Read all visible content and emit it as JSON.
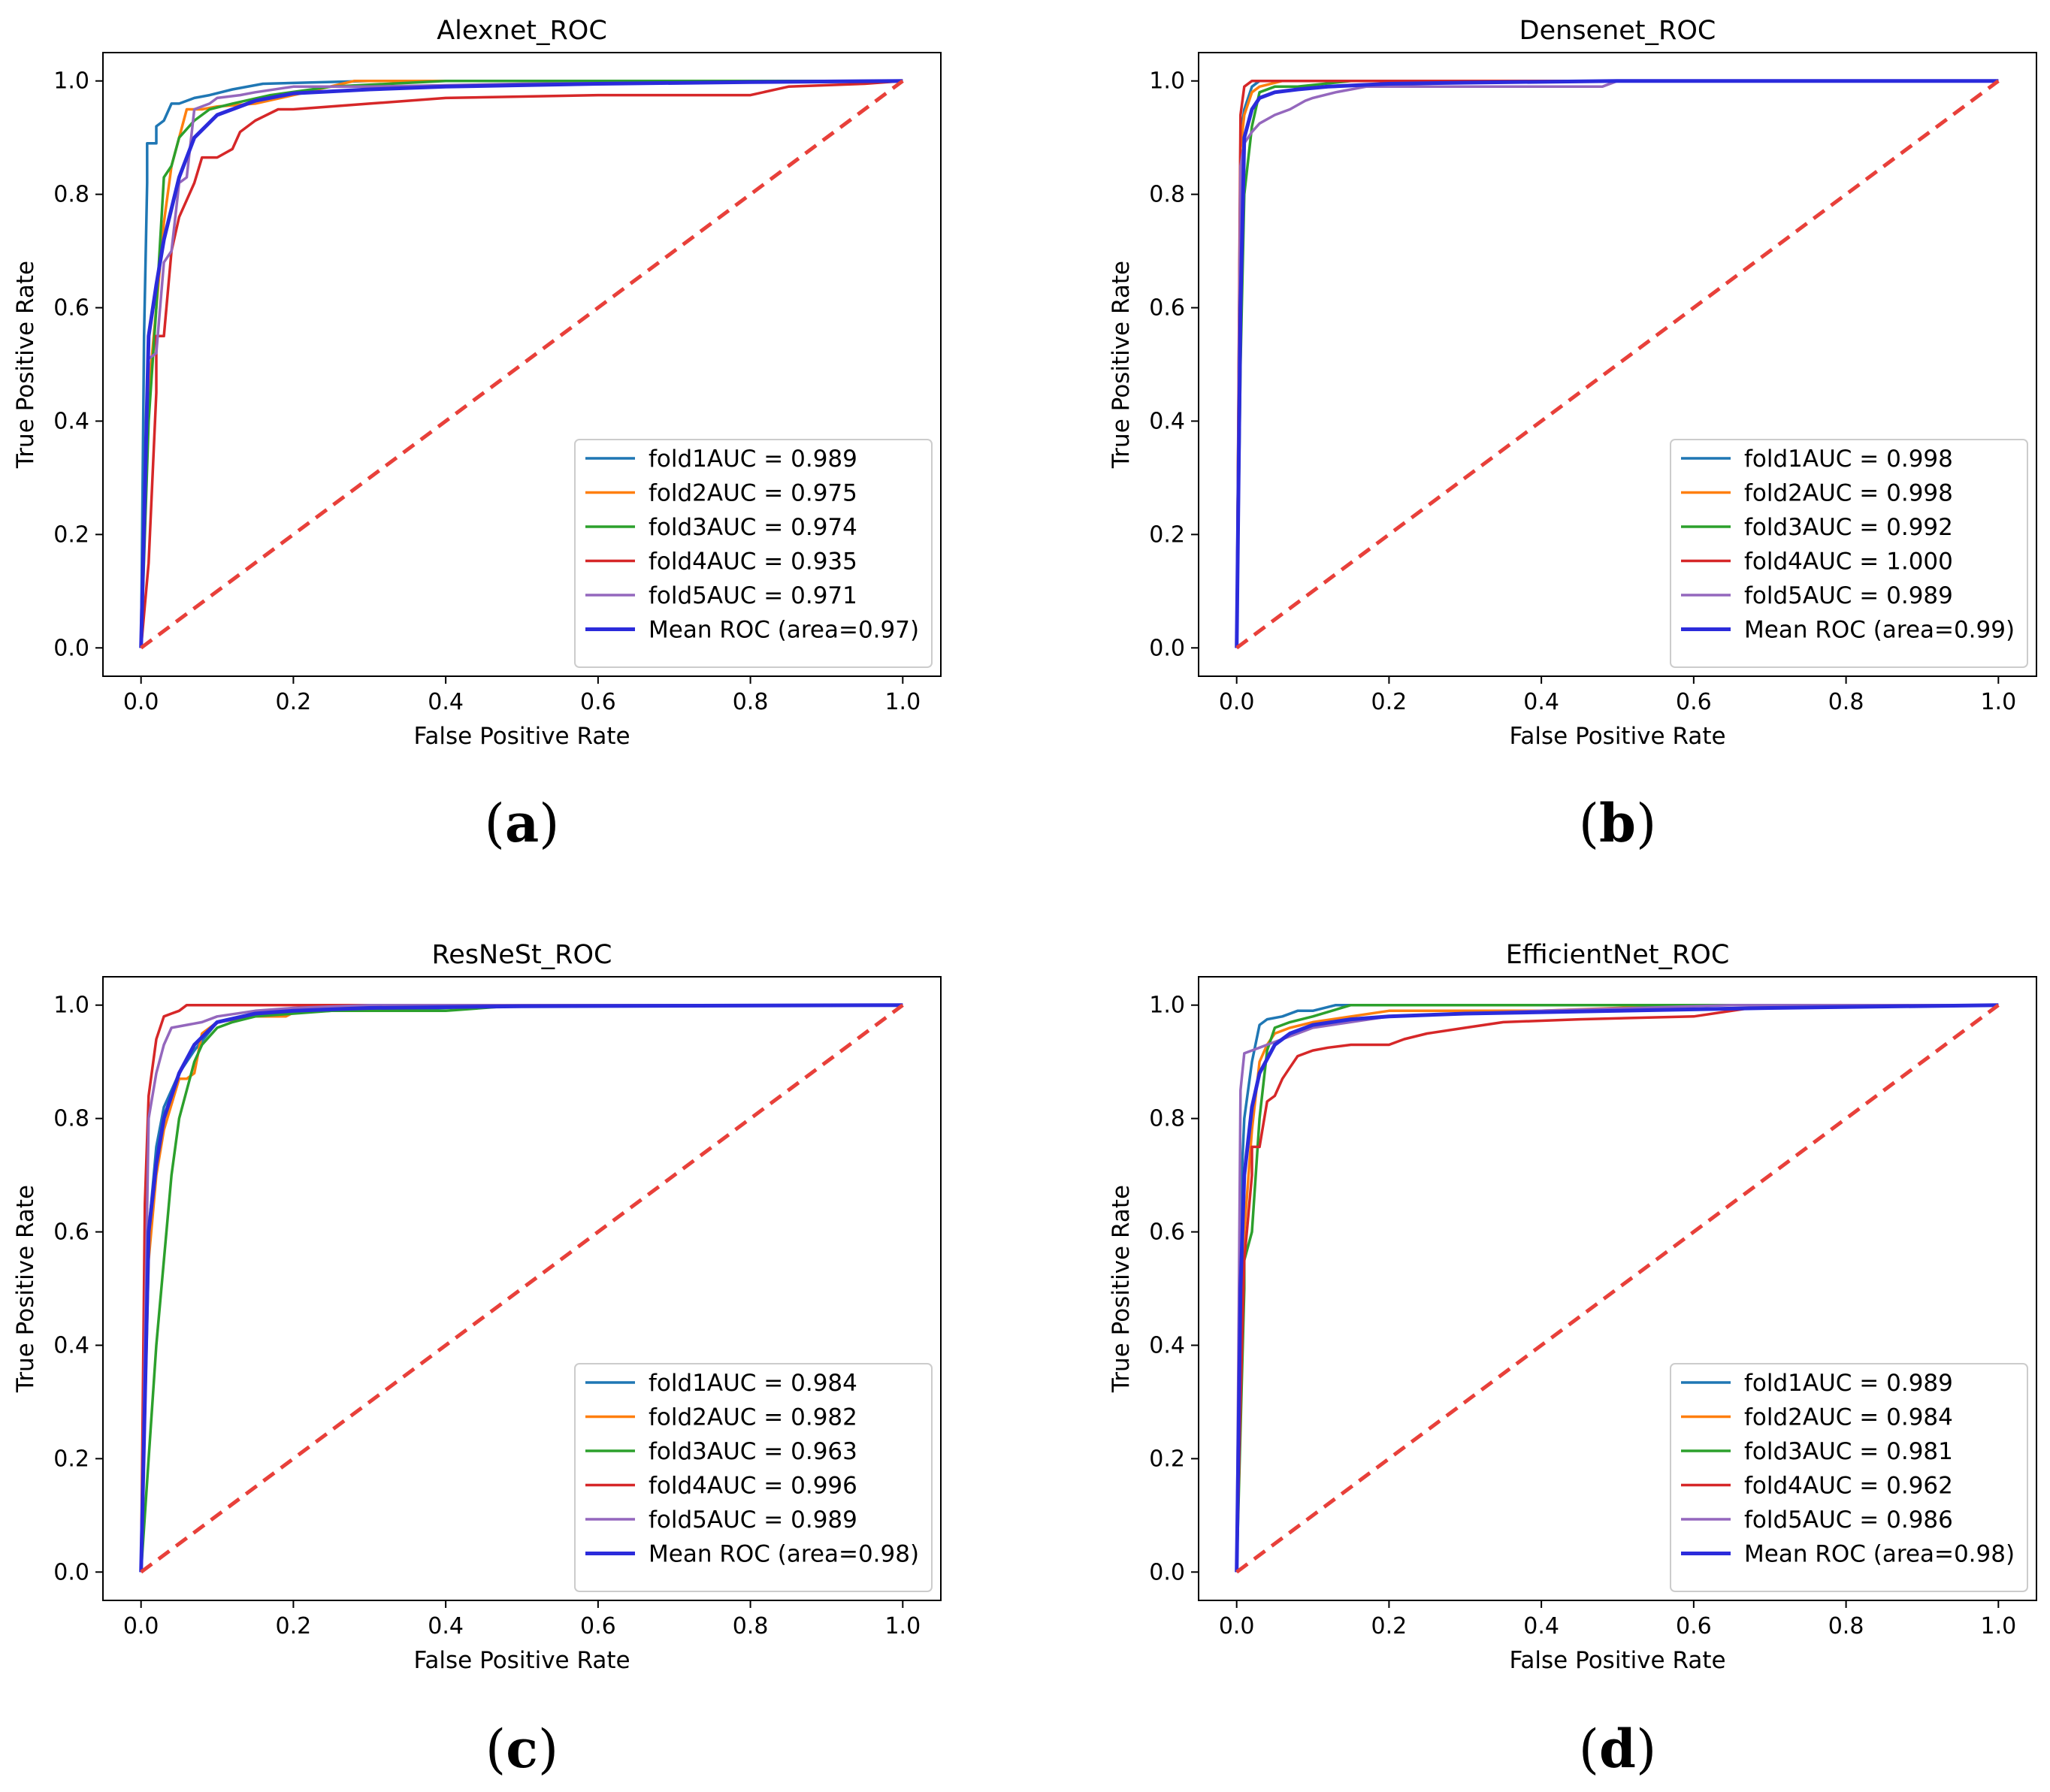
{
  "colors": {
    "fold1": "#1f77b4",
    "fold2": "#ff7f0e",
    "fold3": "#2ca02c",
    "fold4": "#d62728",
    "fold5": "#9467bd",
    "mean": "#2b2bdb",
    "chance": "#e8403a"
  },
  "chart_data": [
    {
      "type": "line",
      "panel_label": "a",
      "title": "Alexnet_ROC",
      "xlabel": "False Positive Rate",
      "ylabel": "True Positive Rate",
      "xlim": [
        0,
        1
      ],
      "ylim": [
        0,
        1
      ],
      "xticks": [
        "0.0",
        "0.2",
        "0.4",
        "0.6",
        "0.8",
        "1.0"
      ],
      "yticks": [
        "0.0",
        "0.2",
        "0.4",
        "0.6",
        "0.8",
        "1.0"
      ],
      "legend_position": "lower-right",
      "chance_line": {
        "x": [
          0,
          1
        ],
        "y": [
          0,
          1
        ],
        "style": "dashed"
      },
      "series": [
        {
          "name": "fold1AUC = 0.989",
          "color": "#1f77b4",
          "x": [
            0,
            0.004,
            0.008,
            0.008,
            0.02,
            0.02,
            0.03,
            0.04,
            0.05,
            0.07,
            0.09,
            0.12,
            0.16,
            0.3,
            0.5,
            1.0
          ],
          "y": [
            0,
            0.55,
            0.82,
            0.89,
            0.89,
            0.92,
            0.93,
            0.96,
            0.96,
            0.97,
            0.975,
            0.985,
            0.995,
            1.0,
            1.0,
            1.0
          ]
        },
        {
          "name": "fold2AUC = 0.975",
          "color": "#ff7f0e",
          "x": [
            0,
            0.01,
            0.02,
            0.03,
            0.04,
            0.05,
            0.06,
            0.08,
            0.1,
            0.15,
            0.2,
            0.28,
            0.4,
            1.0
          ],
          "y": [
            0,
            0.45,
            0.6,
            0.75,
            0.85,
            0.9,
            0.95,
            0.95,
            0.955,
            0.96,
            0.975,
            1.0,
            1.0,
            1.0
          ]
        },
        {
          "name": "fold3AUC = 0.974",
          "color": "#2ca02c",
          "x": [
            0,
            0.01,
            0.02,
            0.03,
            0.04,
            0.05,
            0.07,
            0.09,
            0.12,
            0.17,
            0.25,
            0.4,
            1.0
          ],
          "y": [
            0,
            0.4,
            0.6,
            0.83,
            0.85,
            0.9,
            0.93,
            0.95,
            0.96,
            0.975,
            0.99,
            1.0,
            1.0
          ]
        },
        {
          "name": "fold4AUC = 0.935",
          "color": "#d62728",
          "x": [
            0,
            0.01,
            0.02,
            0.02,
            0.03,
            0.04,
            0.05,
            0.06,
            0.07,
            0.08,
            0.1,
            0.12,
            0.13,
            0.15,
            0.18,
            0.2,
            0.3,
            0.4,
            0.6,
            0.8,
            0.85,
            0.95,
            1.0
          ],
          "y": [
            0,
            0.15,
            0.45,
            0.55,
            0.55,
            0.7,
            0.76,
            0.79,
            0.82,
            0.865,
            0.865,
            0.88,
            0.91,
            0.93,
            0.95,
            0.95,
            0.96,
            0.97,
            0.975,
            0.975,
            0.99,
            0.995,
            1.0
          ]
        },
        {
          "name": "fold5AUC = 0.971",
          "color": "#9467bd",
          "x": [
            0,
            0.01,
            0.02,
            0.03,
            0.04,
            0.05,
            0.06,
            0.07,
            0.09,
            0.1,
            0.13,
            0.15,
            0.2,
            0.3,
            0.5,
            1.0
          ],
          "y": [
            0,
            0.51,
            0.52,
            0.68,
            0.7,
            0.82,
            0.83,
            0.95,
            0.96,
            0.97,
            0.975,
            0.98,
            0.99,
            0.99,
            0.995,
            1.0
          ]
        },
        {
          "name": "Mean ROC (area=0.97)",
          "color": "#2b2bdb",
          "bold": true,
          "x": [
            0,
            0.01,
            0.02,
            0.03,
            0.05,
            0.07,
            0.1,
            0.15,
            0.2,
            0.3,
            0.4,
            0.6,
            0.8,
            1.0
          ],
          "y": [
            0,
            0.55,
            0.64,
            0.72,
            0.83,
            0.9,
            0.94,
            0.965,
            0.978,
            0.985,
            0.99,
            0.995,
            0.998,
            1.0
          ]
        }
      ]
    },
    {
      "type": "line",
      "panel_label": "b",
      "title": "Densenet_ROC",
      "xlabel": "False Positive Rate",
      "ylabel": "True Positive Rate",
      "xlim": [
        0,
        1
      ],
      "ylim": [
        0,
        1
      ],
      "xticks": [
        "0.0",
        "0.2",
        "0.4",
        "0.6",
        "0.8",
        "1.0"
      ],
      "yticks": [
        "0.0",
        "0.2",
        "0.4",
        "0.6",
        "0.8",
        "1.0"
      ],
      "legend_position": "lower-right",
      "chance_line": {
        "x": [
          0,
          1
        ],
        "y": [
          0,
          1
        ],
        "style": "dashed"
      },
      "series": [
        {
          "name": "fold1AUC = 0.998",
          "color": "#1f77b4",
          "x": [
            0,
            0.005,
            0.01,
            0.02,
            0.03,
            0.05,
            0.1,
            1.0
          ],
          "y": [
            0,
            0.9,
            0.95,
            0.99,
            1.0,
            1.0,
            1.0,
            1.0
          ]
        },
        {
          "name": "fold2AUC = 0.998",
          "color": "#ff7f0e",
          "x": [
            0,
            0.005,
            0.01,
            0.02,
            0.03,
            0.06,
            0.1,
            1.0
          ],
          "y": [
            0,
            0.88,
            0.94,
            0.98,
            0.99,
            1.0,
            1.0,
            1.0
          ]
        },
        {
          "name": "fold3AUC = 0.992",
          "color": "#2ca02c",
          "x": [
            0,
            0.005,
            0.01,
            0.02,
            0.03,
            0.05,
            0.08,
            0.15,
            1.0
          ],
          "y": [
            0,
            0.5,
            0.8,
            0.92,
            0.98,
            0.99,
            0.99,
            1.0,
            1.0
          ]
        },
        {
          "name": "fold4AUC = 1.000",
          "color": "#d62728",
          "x": [
            0,
            0.005,
            0.01,
            0.02,
            1.0
          ],
          "y": [
            0,
            0.94,
            0.99,
            1.0,
            1.0
          ]
        },
        {
          "name": "fold5AUC = 0.989",
          "color": "#9467bd",
          "x": [
            0,
            0.005,
            0.01,
            0.02,
            0.03,
            0.05,
            0.07,
            0.09,
            0.1,
            0.13,
            0.17,
            0.3,
            0.48,
            0.5,
            1.0
          ],
          "y": [
            0,
            0.85,
            0.89,
            0.91,
            0.925,
            0.94,
            0.95,
            0.965,
            0.97,
            0.98,
            0.99,
            0.99,
            0.99,
            1.0,
            1.0
          ]
        },
        {
          "name": "Mean ROC (area=0.99)",
          "color": "#2b2bdb",
          "bold": true,
          "x": [
            0,
            0.005,
            0.01,
            0.02,
            0.03,
            0.05,
            0.08,
            0.12,
            0.2,
            0.3,
            0.5,
            1.0
          ],
          "y": [
            0,
            0.6,
            0.9,
            0.95,
            0.97,
            0.98,
            0.985,
            0.99,
            0.995,
            0.997,
            1.0,
            1.0
          ]
        }
      ]
    },
    {
      "type": "line",
      "panel_label": "c",
      "title": "ResNeSt_ROC",
      "xlabel": "False Positive Rate",
      "ylabel": "True Positive Rate",
      "xlim": [
        0,
        1
      ],
      "ylim": [
        0,
        1
      ],
      "xticks": [
        "0.0",
        "0.2",
        "0.4",
        "0.6",
        "0.8",
        "1.0"
      ],
      "yticks": [
        "0.0",
        "0.2",
        "0.4",
        "0.6",
        "0.8",
        "1.0"
      ],
      "legend_position": "lower-right",
      "chance_line": {
        "x": [
          0,
          1
        ],
        "y": [
          0,
          1
        ],
        "style": "dashed"
      },
      "series": [
        {
          "name": "fold1AUC = 0.984",
          "color": "#1f77b4",
          "x": [
            0,
            0.01,
            0.02,
            0.03,
            0.05,
            0.07,
            0.1,
            0.15,
            0.25,
            0.4,
            0.5,
            1.0
          ],
          "y": [
            0,
            0.6,
            0.75,
            0.82,
            0.88,
            0.92,
            0.97,
            0.985,
            0.99,
            0.995,
            1.0,
            1.0
          ]
        },
        {
          "name": "fold2AUC = 0.982",
          "color": "#ff7f0e",
          "x": [
            0,
            0.01,
            0.02,
            0.03,
            0.05,
            0.06,
            0.07,
            0.08,
            0.1,
            0.15,
            0.19,
            0.22,
            1.0
          ],
          "y": [
            0,
            0.55,
            0.7,
            0.78,
            0.87,
            0.87,
            0.88,
            0.95,
            0.97,
            0.98,
            0.98,
            1.0,
            1.0
          ]
        },
        {
          "name": "fold3AUC = 0.963",
          "color": "#2ca02c",
          "x": [
            0,
            0.01,
            0.02,
            0.03,
            0.04,
            0.05,
            0.06,
            0.07,
            0.08,
            0.1,
            0.12,
            0.15,
            0.25,
            0.4,
            0.5,
            1.0
          ],
          "y": [
            0,
            0.2,
            0.4,
            0.55,
            0.7,
            0.8,
            0.85,
            0.9,
            0.93,
            0.96,
            0.97,
            0.98,
            0.99,
            0.99,
            1.0,
            1.0
          ]
        },
        {
          "name": "fold4AUC = 0.996",
          "color": "#d62728",
          "x": [
            0,
            0.005,
            0.01,
            0.02,
            0.03,
            0.04,
            0.05,
            0.06,
            1.0
          ],
          "y": [
            0,
            0.65,
            0.84,
            0.94,
            0.98,
            0.985,
            0.99,
            1.0,
            1.0
          ]
        },
        {
          "name": "fold5AUC = 0.989",
          "color": "#9467bd",
          "x": [
            0,
            0.01,
            0.02,
            0.03,
            0.04,
            0.06,
            0.08,
            0.1,
            0.15,
            0.2,
            0.3,
            1.0
          ],
          "y": [
            0,
            0.8,
            0.88,
            0.93,
            0.96,
            0.965,
            0.97,
            0.98,
            0.99,
            0.995,
            1.0,
            1.0
          ]
        },
        {
          "name": "Mean ROC (area=0.98)",
          "color": "#2b2bdb",
          "bold": true,
          "x": [
            0,
            0.01,
            0.02,
            0.03,
            0.05,
            0.07,
            0.1,
            0.15,
            0.2,
            0.3,
            0.5,
            1.0
          ],
          "y": [
            0,
            0.6,
            0.72,
            0.8,
            0.88,
            0.93,
            0.97,
            0.985,
            0.99,
            0.995,
            0.998,
            1.0
          ]
        }
      ]
    },
    {
      "type": "line",
      "panel_label": "d",
      "title": "EfficientNet_ROC",
      "xlabel": "False Positive Rate",
      "ylabel": "True Positive Rate",
      "xlim": [
        0,
        1
      ],
      "ylim": [
        0,
        1
      ],
      "xticks": [
        "0.0",
        "0.2",
        "0.4",
        "0.6",
        "0.8",
        "1.0"
      ],
      "yticks": [
        "0.0",
        "0.2",
        "0.4",
        "0.6",
        "0.8",
        "1.0"
      ],
      "legend_position": "lower-right",
      "chance_line": {
        "x": [
          0,
          1
        ],
        "y": [
          0,
          1
        ],
        "style": "dashed"
      },
      "series": [
        {
          "name": "fold1AUC = 0.989",
          "color": "#1f77b4",
          "x": [
            0,
            0.005,
            0.01,
            0.02,
            0.03,
            0.04,
            0.06,
            0.08,
            0.1,
            0.13,
            0.18,
            0.3,
            1.0
          ],
          "y": [
            0,
            0.65,
            0.8,
            0.9,
            0.965,
            0.975,
            0.98,
            0.99,
            0.99,
            1.0,
            1.0,
            1.0,
            1.0
          ]
        },
        {
          "name": "fold2AUC = 0.984",
          "color": "#ff7f0e",
          "x": [
            0,
            0.01,
            0.02,
            0.03,
            0.04,
            0.05,
            0.07,
            0.1,
            0.2,
            0.4,
            0.6,
            1.0
          ],
          "y": [
            0,
            0.6,
            0.78,
            0.9,
            0.93,
            0.95,
            0.96,
            0.97,
            0.99,
            0.99,
            1.0,
            1.0
          ]
        },
        {
          "name": "fold3AUC = 0.981",
          "color": "#2ca02c",
          "x": [
            0,
            0.01,
            0.01,
            0.02,
            0.03,
            0.04,
            0.05,
            0.07,
            0.1,
            0.15,
            0.25,
            0.5,
            1.0
          ],
          "y": [
            0,
            0.5,
            0.55,
            0.6,
            0.8,
            0.92,
            0.96,
            0.97,
            0.98,
            1.0,
            1.0,
            1.0,
            1.0
          ]
        },
        {
          "name": "fold4AUC = 0.962",
          "color": "#d62728",
          "x": [
            0,
            0.005,
            0.01,
            0.02,
            0.02,
            0.03,
            0.04,
            0.05,
            0.06,
            0.07,
            0.08,
            0.1,
            0.12,
            0.15,
            0.2,
            0.22,
            0.25,
            0.3,
            0.35,
            0.45,
            0.6,
            0.65,
            0.7,
            1.0
          ],
          "y": [
            0,
            0.3,
            0.55,
            0.7,
            0.75,
            0.75,
            0.83,
            0.84,
            0.87,
            0.89,
            0.91,
            0.92,
            0.925,
            0.93,
            0.93,
            0.94,
            0.95,
            0.96,
            0.97,
            0.975,
            0.98,
            0.99,
            1.0,
            1.0
          ]
        },
        {
          "name": "fold5AUC = 0.986",
          "color": "#9467bd",
          "x": [
            0,
            0.005,
            0.01,
            0.02,
            0.03,
            0.04,
            0.06,
            0.08,
            0.1,
            0.2,
            0.4,
            0.65,
            1.0
          ],
          "y": [
            0,
            0.85,
            0.915,
            0.92,
            0.925,
            0.93,
            0.94,
            0.95,
            0.96,
            0.98,
            0.99,
            1.0,
            1.0
          ]
        },
        {
          "name": "Mean ROC (area=0.98)",
          "color": "#2b2bdb",
          "bold": true,
          "x": [
            0,
            0.005,
            0.01,
            0.02,
            0.03,
            0.05,
            0.07,
            0.1,
            0.15,
            0.2,
            0.3,
            0.5,
            0.7,
            1.0
          ],
          "y": [
            0,
            0.5,
            0.7,
            0.82,
            0.88,
            0.93,
            0.95,
            0.965,
            0.975,
            0.98,
            0.985,
            0.99,
            0.995,
            1.0
          ]
        }
      ]
    }
  ]
}
